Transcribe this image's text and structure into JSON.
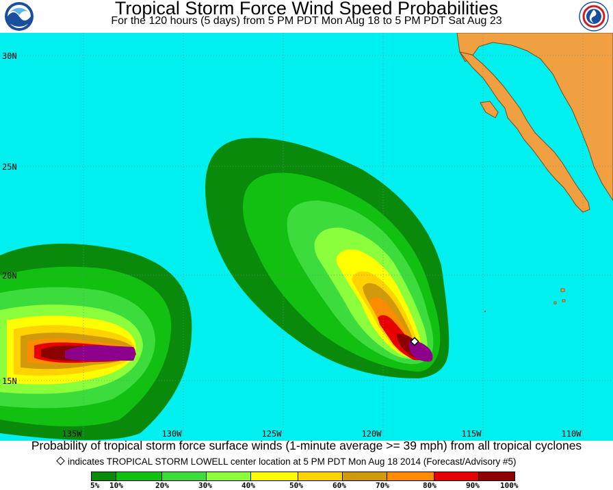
{
  "header": {
    "title": "Tropical Storm Force Wind Speed Probabilities",
    "subtitle": "For the 120 hours (5 days) from 5 PM PDT Mon Aug 18 to 5 PM PDT Sat Aug 23"
  },
  "logos": {
    "left": "NOAA",
    "right": "NATIONAL WEATHER SERVICE"
  },
  "map": {
    "latitude_labels": [
      "30N",
      "25N",
      "20N",
      "15N"
    ],
    "longitude_labels": [
      "135W",
      "130W",
      "125W",
      "120W",
      "115W",
      "110W"
    ],
    "colors": {
      "ocean": "#00f0f0",
      "land": "#f0a040",
      "coast": "#7a4a1a",
      "grid": "#6e8a8a"
    },
    "storm_marker_label": "TROPICAL STORM LOWELL"
  },
  "footer": {
    "caption": "Probability of tropical storm force surface winds (1-minute average >= 39 mph) from all tropical cyclones",
    "note": "indicates TROPICAL STORM LOWELL center location at 5 PM PDT Mon Aug 18 2014 (Forecast/Advisory #5)"
  },
  "legend": {
    "labels": [
      "5%",
      "10%",
      "20%",
      "30%",
      "40%",
      "50%",
      "60%",
      "70%",
      "80%",
      "90%",
      "100%"
    ],
    "colors": [
      "#0a8a0a",
      "#12c012",
      "#3cdc3c",
      "#8cff3c",
      "#ffff00",
      "#ffd200",
      "#d29a0a",
      "#ff8c00",
      "#e60000",
      "#8c0000",
      "#8c008c"
    ]
  }
}
